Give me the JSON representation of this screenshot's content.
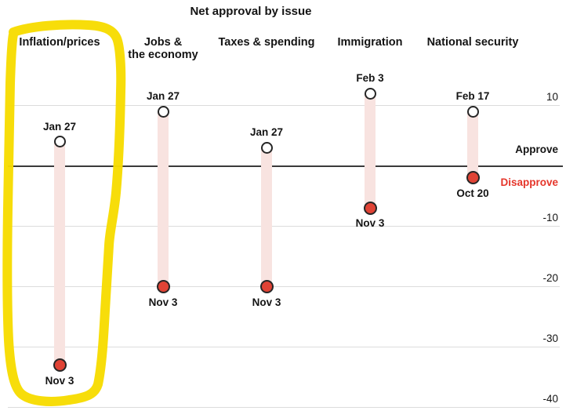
{
  "chart_data": {
    "type": "dumbbell",
    "title": "Net approval by issue",
    "approve_label": "Approve",
    "disapprove_label": "Disapprove",
    "y_ticks": [
      10,
      -10,
      -20,
      -30,
      -40
    ],
    "ylim": [
      -45,
      15
    ],
    "zero_line": 0,
    "grid": true,
    "tick_labels_position": "right",
    "series": [
      {
        "issue": "Inflation/prices",
        "issue_display": "Inflation/prices",
        "start_date": "Jan 27",
        "start_value": 4,
        "end_date": "Nov 3",
        "end_value": -33,
        "highlighted": true
      },
      {
        "issue": "Jobs & the economy",
        "issue_display": "Jobs &\nthe economy",
        "start_date": "Jan 27",
        "start_value": 9,
        "end_date": "Nov 3",
        "end_value": -20,
        "highlighted": false
      },
      {
        "issue": "Taxes & spending",
        "issue_display": "Taxes & spending",
        "start_date": "Jan 27",
        "start_value": 3,
        "end_date": "Nov 3",
        "end_value": -20,
        "highlighted": false
      },
      {
        "issue": "Immigration",
        "issue_display": "Immigration",
        "start_date": "Feb 3",
        "start_value": 12,
        "end_date": "Nov 3",
        "end_value": -7,
        "highlighted": false
      },
      {
        "issue": "National security",
        "issue_display": "National security",
        "start_date": "Feb 17",
        "start_value": 9,
        "end_date": "Oct 20",
        "end_value": -2,
        "highlighted": false
      }
    ]
  },
  "annotation": {
    "shape": "hand-drawn marker circle",
    "highlights": "Inflation/prices",
    "color": "#f7dc00"
  },
  "colors": {
    "range_bar": "#f8e3e0",
    "end_dot": "#e04335",
    "start_dot": "#ffffff",
    "dot_outline": "#262626",
    "approve_text": "#141414",
    "disapprove_text": "#e5352a",
    "highlight_marker": "#f7dc00",
    "gridline": "#dcdcdc",
    "zero_line": "#3a3a3a"
  }
}
